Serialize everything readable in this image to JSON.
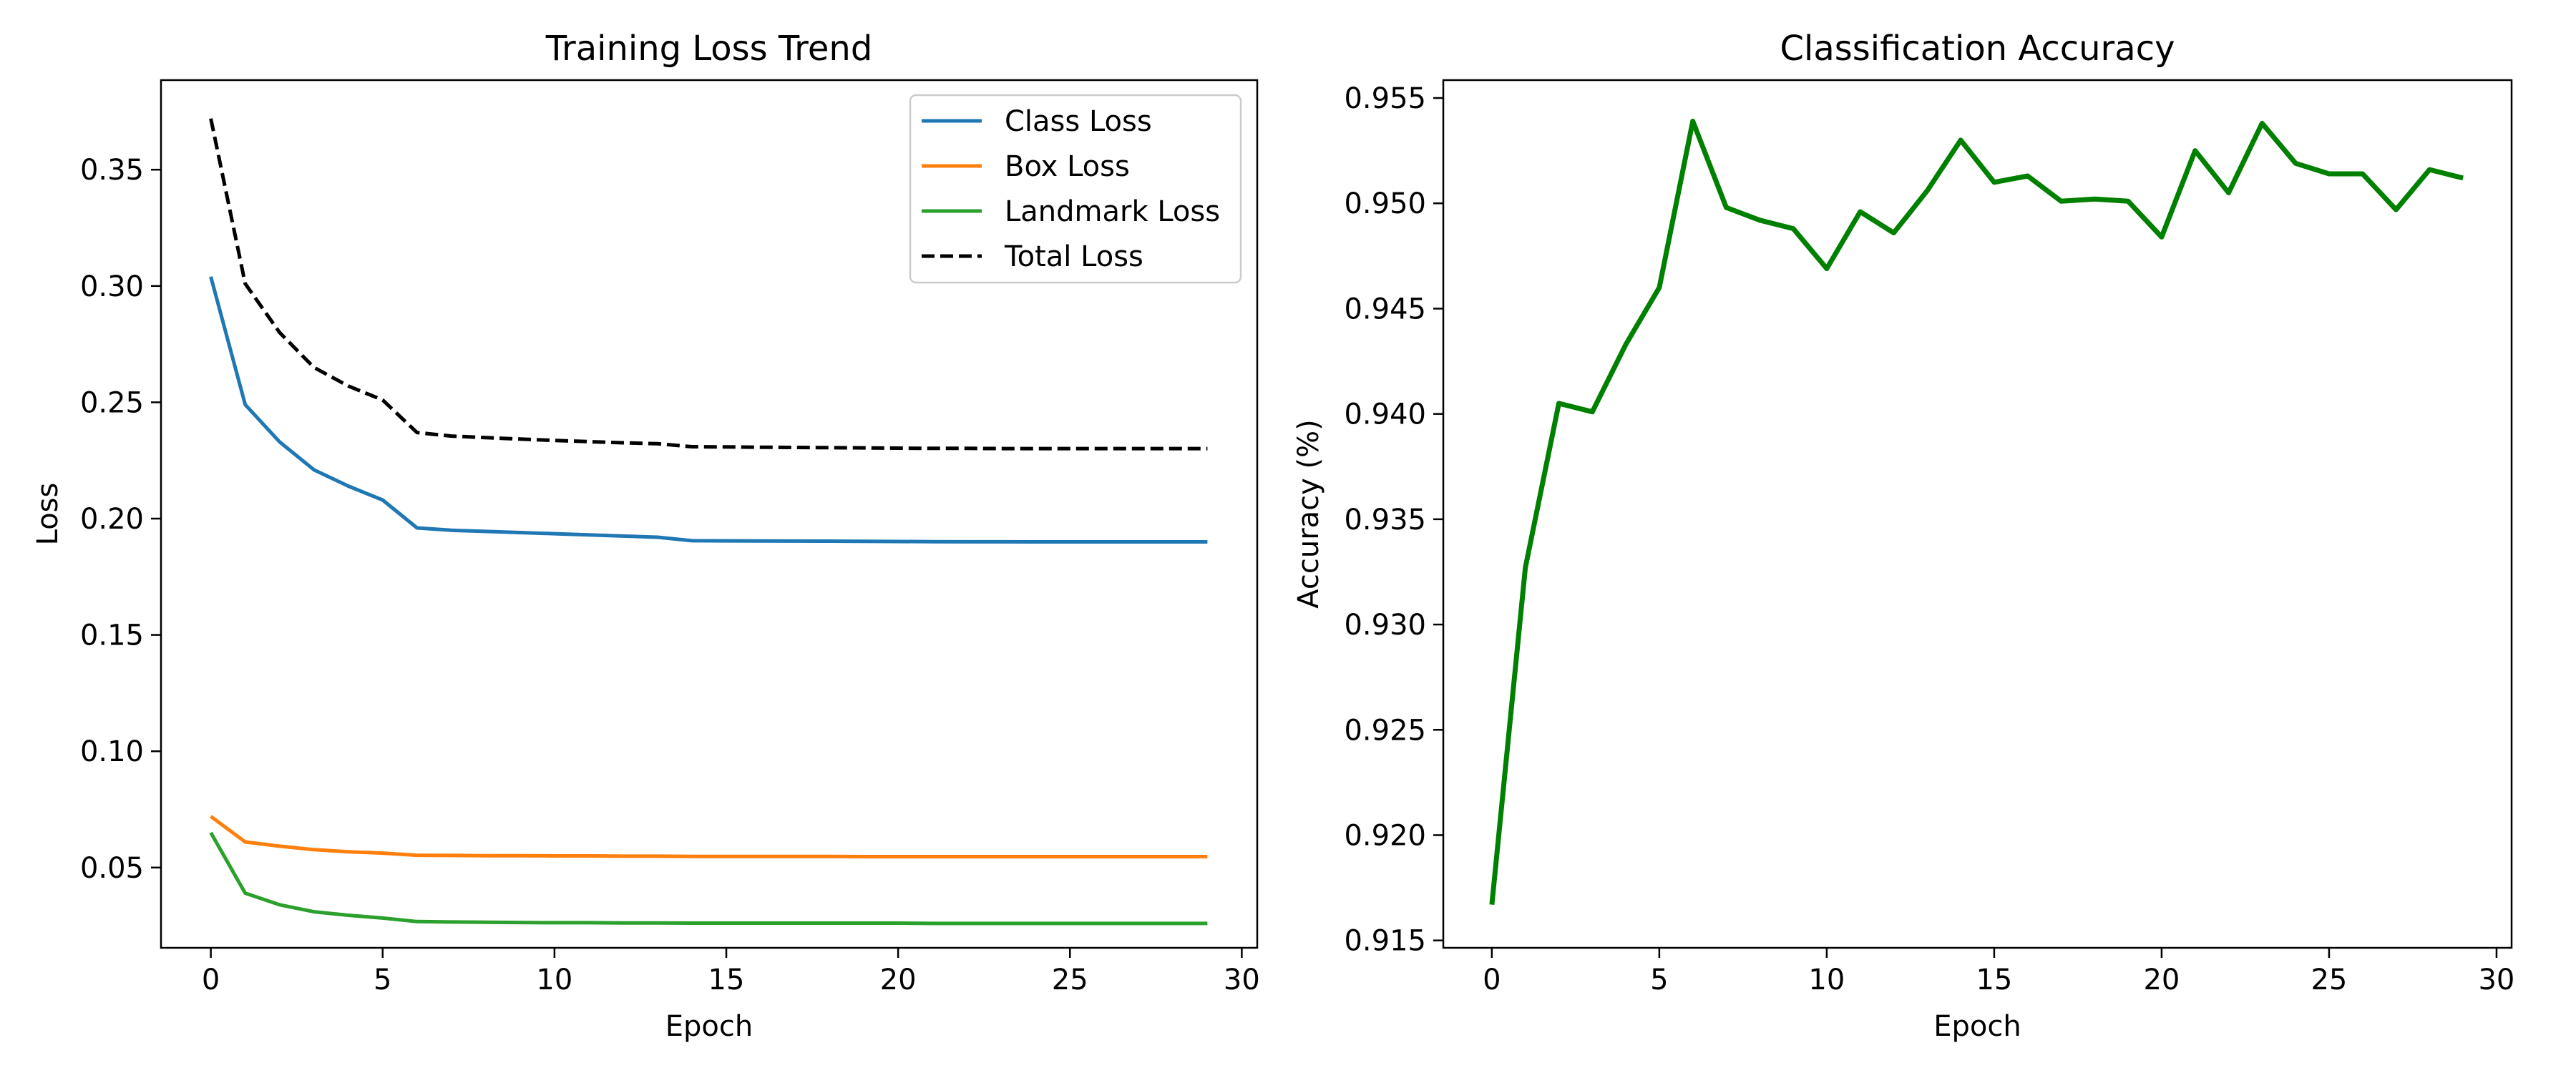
{
  "chart_data": [
    {
      "type": "line",
      "title": "Training Loss Trend",
      "xlabel": "Epoch",
      "ylabel": "Loss",
      "xlim": [
        -1.45,
        30.45
      ],
      "ylim": [
        0.0155,
        0.3885
      ],
      "xticks": [
        0,
        5,
        10,
        15,
        20,
        25,
        30
      ],
      "yticks": [
        0.05,
        0.1,
        0.15,
        0.2,
        0.25,
        0.3,
        0.35
      ],
      "ytick_decimals": 2,
      "grid": false,
      "legend": "upper right",
      "x": [
        0,
        1,
        2,
        3,
        4,
        5,
        6,
        7,
        8,
        9,
        10,
        11,
        12,
        13,
        14,
        15,
        16,
        17,
        18,
        19,
        20,
        21,
        22,
        23,
        24,
        25,
        26,
        27,
        28,
        29
      ],
      "series": [
        {
          "name": "Class Loss",
          "color": "#1f77b4",
          "dash": "solid",
          "values": [
            0.304,
            0.249,
            0.233,
            0.221,
            0.214,
            0.208,
            0.196,
            0.195,
            0.1945,
            0.194,
            0.1935,
            0.193,
            0.1925,
            0.192,
            0.1905,
            0.19045,
            0.1904,
            0.19035,
            0.1903,
            0.19025,
            0.19015,
            0.1901,
            0.19005,
            0.19005,
            0.19,
            0.19,
            0.19,
            0.19,
            0.19,
            0.19
          ]
        },
        {
          "name": "Box Loss",
          "color": "#ff7f0e",
          "dash": "solid",
          "values": [
            0.072,
            0.061,
            0.0592,
            0.0577,
            0.0568,
            0.0562,
            0.0553,
            0.0552,
            0.0551,
            0.0551,
            0.055,
            0.055,
            0.0549,
            0.0549,
            0.0548,
            0.0548,
            0.0548,
            0.0548,
            0.0548,
            0.0547,
            0.0547,
            0.0547,
            0.0547,
            0.0547,
            0.0547,
            0.0547,
            0.0547,
            0.0547,
            0.0547,
            0.0547
          ]
        },
        {
          "name": "Landmark Loss",
          "color": "#2ca02c",
          "dash": "solid",
          "values": [
            0.065,
            0.039,
            0.034,
            0.031,
            0.0295,
            0.0283,
            0.0268,
            0.0266,
            0.0265,
            0.0264,
            0.0263,
            0.0263,
            0.0262,
            0.0262,
            0.0261,
            0.0261,
            0.0261,
            0.0261,
            0.0261,
            0.0261,
            0.0261,
            0.026,
            0.026,
            0.026,
            0.026,
            0.026,
            0.026,
            0.026,
            0.026,
            0.026
          ]
        },
        {
          "name": "Total Loss",
          "color": "#000000",
          "dash": "dashed",
          "values": [
            0.372,
            0.301,
            0.28,
            0.265,
            0.257,
            0.251,
            0.237,
            0.2355,
            0.2348,
            0.2342,
            0.2336,
            0.2331,
            0.2326,
            0.2322,
            0.2309,
            0.2308,
            0.2307,
            0.2306,
            0.2305,
            0.2304,
            0.2303,
            0.2302,
            0.2302,
            0.2301,
            0.2301,
            0.2301,
            0.2301,
            0.2301,
            0.2301,
            0.2301
          ]
        }
      ]
    },
    {
      "type": "line",
      "title": "Classification Accuracy",
      "xlabel": "Epoch",
      "ylabel": "Accuracy (%)",
      "xlim": [
        -1.45,
        30.45
      ],
      "ylim": [
        0.91465,
        0.95585
      ],
      "xticks": [
        0,
        5,
        10,
        15,
        20,
        25,
        30
      ],
      "yticks": [
        0.915,
        0.92,
        0.925,
        0.93,
        0.935,
        0.94,
        0.945,
        0.95,
        0.955
      ],
      "ytick_decimals": 3,
      "grid": false,
      "legend": "none",
      "x": [
        0,
        1,
        2,
        3,
        4,
        5,
        6,
        7,
        8,
        9,
        10,
        11,
        12,
        13,
        14,
        15,
        16,
        17,
        18,
        19,
        20,
        21,
        22,
        23,
        24,
        25,
        26,
        27,
        28,
        29
      ],
      "series": [
        {
          "color": "#008000",
          "dash": "solid",
          "values": [
            0.9167,
            0.9327,
            0.9405,
            0.9401,
            0.9433,
            0.946,
            0.9539,
            0.9498,
            0.9492,
            0.9488,
            0.9469,
            0.9496,
            0.9486,
            0.9506,
            0.953,
            0.951,
            0.9513,
            0.9501,
            0.9502,
            0.9501,
            0.9484,
            0.9525,
            0.9505,
            0.9538,
            0.9519,
            0.9514,
            0.9514,
            0.9497,
            0.9516,
            0.9512
          ]
        }
      ]
    }
  ]
}
